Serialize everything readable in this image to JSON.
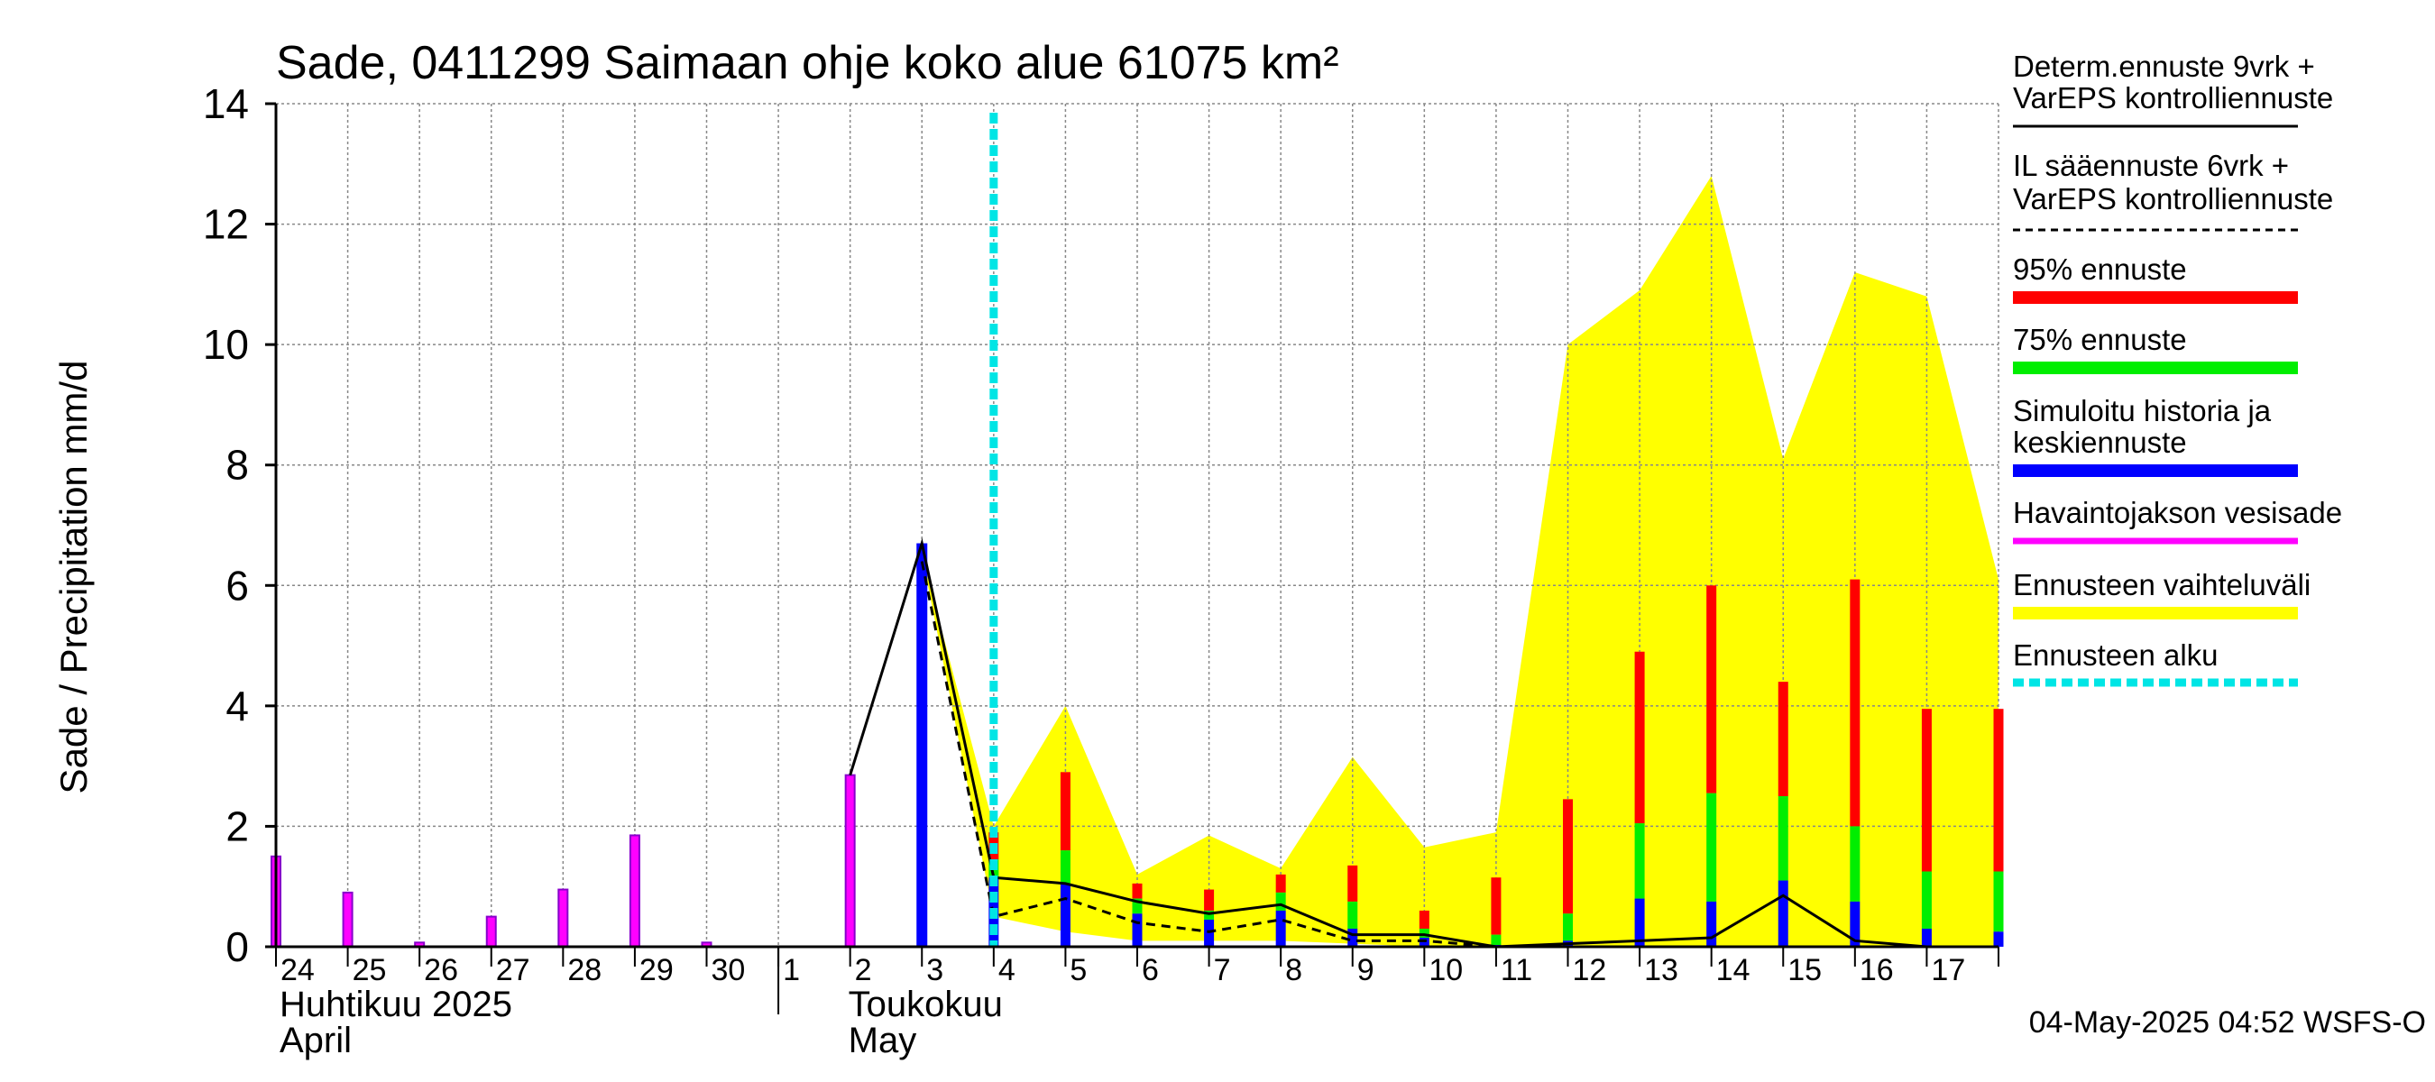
{
  "chart_data": {
    "type": "bar",
    "title": "Sade, 0411299 Saimaan ohje koko alue 61075 km²",
    "ylabel": "Sade / Precipitation   mm/d",
    "ylim": [
      0,
      14
    ],
    "yticks": [
      0,
      2,
      4,
      6,
      8,
      10,
      12,
      14
    ],
    "xlim": [
      0,
      24
    ],
    "days": [
      "24",
      "25",
      "26",
      "27",
      "28",
      "29",
      "30",
      "1",
      "2",
      "3",
      "4",
      "5",
      "6",
      "7",
      "8",
      "9",
      "10",
      "11",
      "12",
      "13",
      "14",
      "15",
      "16",
      "17"
    ],
    "month_labels": {
      "april_fi": "Huhtikuu  2025",
      "april_en": "April",
      "may_fi": "Toukokuu",
      "may_en": "May"
    },
    "forecast_start": 10,
    "observed": [
      {
        "x": 0.0,
        "value": 1.5
      },
      {
        "x": 1.0,
        "value": 0.9
      },
      {
        "x": 2.0,
        "value": 0.07
      },
      {
        "x": 3.0,
        "value": 0.5
      },
      {
        "x": 4.0,
        "value": 0.95
      },
      {
        "x": 5.0,
        "value": 1.85
      },
      {
        "x": 6.0,
        "value": 0.07
      },
      {
        "x": 8.0,
        "value": 2.85
      }
    ],
    "simulated_history": [
      {
        "x": 9.0,
        "value": 6.7
      }
    ],
    "forecast_bars": [
      {
        "x": 10.0,
        "p95": 1.9,
        "p75": 1.45,
        "median": 1.15
      },
      {
        "x": 11.0,
        "p95": 2.9,
        "p75": 1.6,
        "median": 1.05
      },
      {
        "x": 12.0,
        "p95": 1.05,
        "p75": 0.8,
        "median": 0.55
      },
      {
        "x": 13.0,
        "p95": 0.95,
        "p75": 0.6,
        "median": 0.45
      },
      {
        "x": 14.0,
        "p95": 1.2,
        "p75": 0.9,
        "median": 0.6
      },
      {
        "x": 15.0,
        "p95": 1.35,
        "p75": 0.75,
        "median": 0.3
      },
      {
        "x": 16.0,
        "p95": 0.6,
        "p75": 0.3,
        "median": 0.15
      },
      {
        "x": 17.0,
        "p95": 1.15,
        "p75": 0.2,
        "median": 0.03
      },
      {
        "x": 18.0,
        "p95": 2.45,
        "p75": 0.55,
        "median": 0.1
      },
      {
        "x": 19.0,
        "p95": 4.9,
        "p75": 2.05,
        "median": 0.8
      },
      {
        "x": 20.0,
        "p95": 6.0,
        "p75": 2.55,
        "median": 0.75
      },
      {
        "x": 21.0,
        "p95": 4.4,
        "p75": 2.5,
        "median": 1.1
      },
      {
        "x": 22.0,
        "p95": 6.1,
        "p75": 2.0,
        "median": 0.75
      },
      {
        "x": 23.0,
        "p95": 3.95,
        "p75": 1.25,
        "median": 0.3
      },
      {
        "x": 24.0,
        "p95": 3.95,
        "p75": 1.25,
        "median": 0.25
      }
    ],
    "range_band": {
      "x": [
        9.0,
        10.0,
        11.0,
        12.0,
        13.0,
        14.0,
        15.0,
        16.0,
        17.0,
        18.0,
        19.0,
        20.0,
        21.0,
        22.0,
        23.0,
        24.0
      ],
      "upper": [
        6.5,
        2.0,
        4.0,
        1.2,
        1.85,
        1.3,
        3.15,
        1.65,
        1.9,
        10.0,
        10.9,
        12.8,
        8.1,
        11.2,
        10.8,
        6.1
      ],
      "lower": [
        6.5,
        0.5,
        0.25,
        0.1,
        0.1,
        0.1,
        0.05,
        0.0,
        0.0,
        0.0,
        0.0,
        0.0,
        0.0,
        0.0,
        0.0,
        0.0
      ]
    },
    "determ_line": {
      "x": [
        8.0,
        9.0,
        10.0,
        11.0,
        12.0,
        13.0,
        14.0,
        15.0,
        16.0,
        17.0,
        18.0,
        19.0,
        20.0,
        21.0,
        22.0,
        23.0,
        24.0
      ],
      "y": [
        2.85,
        6.7,
        1.15,
        1.05,
        0.75,
        0.55,
        0.7,
        0.2,
        0.2,
        0.0,
        0.05,
        0.1,
        0.15,
        0.85,
        0.1,
        0.0,
        0.0
      ]
    },
    "il_line": {
      "x": [
        9.0,
        10.0,
        11.0,
        12.0,
        13.0,
        14.0,
        15.0,
        16.0,
        17.0
      ],
      "y": [
        6.4,
        0.5,
        0.8,
        0.4,
        0.25,
        0.45,
        0.1,
        0.1,
        0.0
      ]
    },
    "legend": [
      {
        "id": "determ",
        "label1": "Determ.ennuste 9vrk +",
        "label2": "VarEPS kontrolliennuste",
        "style": "solid",
        "color": "#000000"
      },
      {
        "id": "il",
        "label1": "IL sääennuste 6vrk  +",
        "label2": "  VarEPS kontrolliennuste",
        "style": "dashed",
        "color": "#000000"
      },
      {
        "id": "p95",
        "label1": "95% ennuste",
        "label2": "",
        "style": "thick",
        "color": "#ff0000"
      },
      {
        "id": "p75",
        "label1": "75% ennuste",
        "label2": "",
        "style": "thick",
        "color": "#00ee00"
      },
      {
        "id": "median",
        "label1": "Simuloitu historia ja",
        "label2": "keskiennuste",
        "style": "thick",
        "color": "#0000ff"
      },
      {
        "id": "obs",
        "label1": "Havaintojakson vesisade",
        "label2": "",
        "style": "medium",
        "color": "#ff00ff"
      },
      {
        "id": "range",
        "label1": "Ennusteen vaihteluväli",
        "label2": "",
        "style": "thick",
        "color": "#ffff00"
      },
      {
        "id": "start",
        "label1": "Ennusteen alku",
        "label2": "",
        "style": "dotted",
        "color": "#00e5e5"
      }
    ],
    "colors": {
      "p95": "#ff0000",
      "p75": "#00ee00",
      "median": "#0000ff",
      "observed": "#ff00ff",
      "observed_edge": "#8800cc",
      "range": "#ffff00",
      "forecast_start": "#00e5e5"
    },
    "timestamp": "04-May-2025 04:52 WSFS-O"
  }
}
